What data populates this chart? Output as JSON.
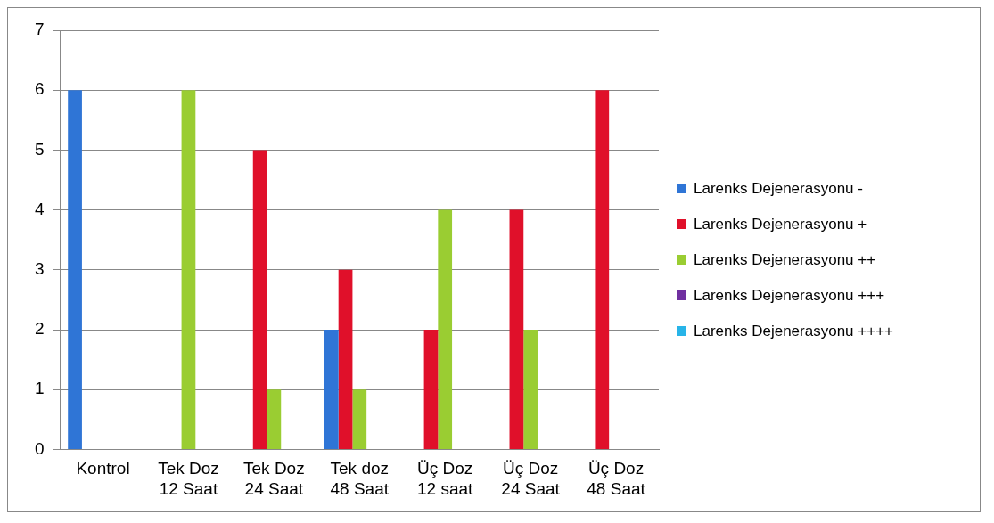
{
  "chart_data": {
    "type": "bar",
    "categories": [
      "Kontrol",
      "Tek Doz 12 Saat",
      "Tek Doz 24 Saat",
      "Tek doz 48 Saat",
      "Üç Doz 12 saat",
      "Üç Doz 24 Saat",
      "Üç Doz 48 Saat"
    ],
    "series": [
      {
        "name": "Larenks Dejenerasyonu -",
        "color": "#2f75d6",
        "values": [
          6,
          0,
          0,
          2,
          0,
          0,
          0
        ]
      },
      {
        "name": "Larenks Dejenerasyonu +",
        "color": "#e0102a",
        "values": [
          0,
          0,
          5,
          3,
          2,
          4,
          6
        ]
      },
      {
        "name": "Larenks Dejenerasyonu ++",
        "color": "#9acd32",
        "values": [
          0,
          6,
          1,
          1,
          4,
          2,
          0
        ]
      },
      {
        "name": "Larenks Dejenerasyonu +++",
        "color": "#7030a0",
        "values": [
          0,
          0,
          0,
          0,
          0,
          0,
          0
        ]
      },
      {
        "name": "Larenks Dejenerasyonu ++++",
        "color": "#28b4e8",
        "values": [
          0,
          0,
          0,
          0,
          0,
          0,
          0
        ]
      }
    ],
    "ylim": [
      0,
      7
    ],
    "yticks": [
      0,
      1,
      2,
      3,
      4,
      5,
      6,
      7
    ],
    "grid": "y",
    "legend": "right"
  }
}
